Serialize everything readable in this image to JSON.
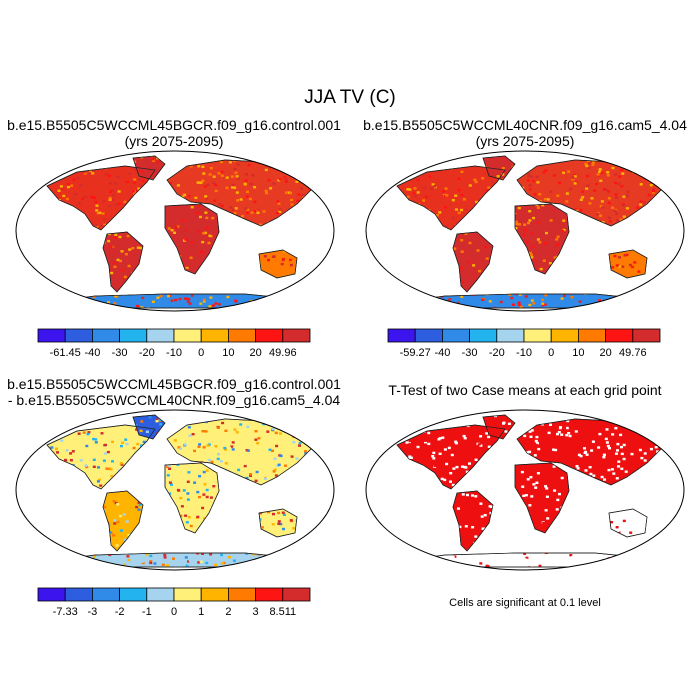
{
  "main_title": "JJA TV (C)",
  "panels": [
    {
      "id": "case1",
      "title_lines": [
        "b.e15.B5505C5WCCML45BGCR.f09_g16.control.001",
        "(yrs 2075-2095)"
      ],
      "colorbar": {
        "labels": [
          "-61.45",
          "-40",
          "-30",
          "-20",
          "-10",
          "0",
          "10",
          "20",
          "49.96"
        ],
        "colors": [
          "#3c14ee",
          "#2d5ee0",
          "#2f8ae8",
          "#23b4f0",
          "#a6d4ee",
          "#fff07a",
          "#ffb400",
          "#ff7a00",
          "#ff1414",
          "#d42c2c"
        ]
      }
    },
    {
      "id": "case2",
      "title_lines": [
        "b.e15.B5505C5WCCML40CNR.f09_g16.cam5_4.04",
        "(yrs 2075-2095)"
      ],
      "colorbar": {
        "labels": [
          "-59.27",
          "-40",
          "-30",
          "-20",
          "-10",
          "0",
          "10",
          "20",
          "49.76"
        ],
        "colors": [
          "#3c14ee",
          "#2d5ee0",
          "#2f8ae8",
          "#23b4f0",
          "#a6d4ee",
          "#fff07a",
          "#ffb400",
          "#ff7a00",
          "#ff1414",
          "#d42c2c"
        ]
      }
    },
    {
      "id": "diff",
      "title_lines": [
        "b.e15.B5505C5WCCML45BGCR.f09_g16.control.001",
        "- b.e15.B5505C5WCCML40CNR.f09_g16.cam5_4.04"
      ],
      "colorbar": {
        "labels": [
          "-7.33",
          "-3",
          "-2",
          "-1",
          "0",
          "1",
          "2",
          "3",
          "8.511"
        ],
        "colors": [
          "#3c14ee",
          "#2d5ee0",
          "#2f8ae8",
          "#23b4f0",
          "#a6d4ee",
          "#fff07a",
          "#ffb400",
          "#ff7a00",
          "#ff1414",
          "#d42c2c"
        ]
      }
    },
    {
      "id": "ttest",
      "title_lines": [
        "T-Test of two Case means at each grid point"
      ],
      "note": "Cells are significant at 0.1 level"
    }
  ]
}
